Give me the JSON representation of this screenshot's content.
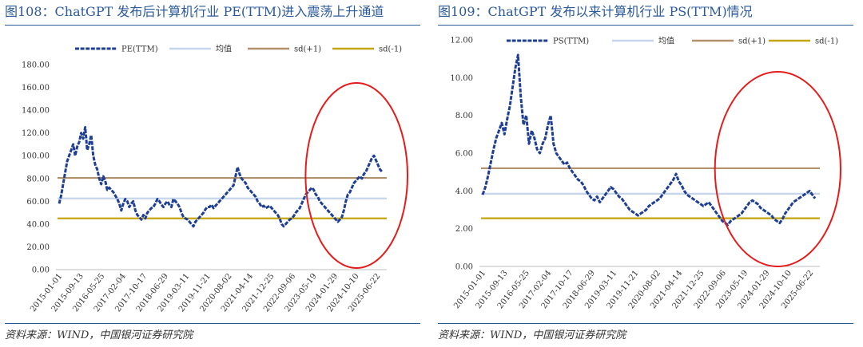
{
  "chart_data": [
    {
      "fig_title": "图108：ChatGPT 发布后计算机行业 PE(TTM)进入震荡上升通道",
      "source": "资料来源：WIND，中国银河证券研究院",
      "type": "line",
      "ylim": [
        0,
        180
      ],
      "yticks": [
        "0.00",
        "20.00",
        "40.00",
        "60.00",
        "80.00",
        "100.00",
        "120.00",
        "140.00",
        "160.00",
        "180.00"
      ],
      "xlabels": [
        "2015-01-01",
        "2015-09-13",
        "2016-05-25",
        "2017-02-04",
        "2017-10-17",
        "2018-06-29",
        "2019-03-11",
        "2019-11-21",
        "2020-08-02",
        "2021-04-14",
        "2021-12-25",
        "2022-09-06",
        "2023-05-19",
        "2024-01-29",
        "2024-10-10",
        "2025-06-22"
      ],
      "series": [
        {
          "name": "PE(TTM)",
          "color": "#1f3f95",
          "values": [
            58,
            65,
            75,
            85,
            95,
            100,
            105,
            110,
            100,
            108,
            112,
            120,
            115,
            125,
            105,
            110,
            118,
            100,
            92,
            88,
            80,
            75,
            82,
            78,
            70,
            72,
            70,
            68,
            65,
            62,
            58,
            52,
            58,
            62,
            60,
            55,
            58,
            60,
            52,
            48,
            46,
            44,
            48,
            45,
            50,
            52,
            54,
            55,
            58,
            62,
            60,
            57,
            55,
            58,
            60,
            57,
            55,
            62,
            60,
            58,
            55,
            50,
            46,
            45,
            44,
            42,
            40,
            38,
            42,
            44,
            46,
            48,
            50,
            53,
            55,
            55,
            57,
            54,
            56,
            58,
            60,
            62,
            64,
            66,
            68,
            70,
            72,
            74,
            82,
            90,
            84,
            80,
            78,
            76,
            72,
            70,
            68,
            66,
            64,
            60,
            58,
            55,
            56,
            54,
            55,
            56,
            54,
            52,
            50,
            48,
            45,
            40,
            38,
            40,
            42,
            44,
            45,
            47,
            50,
            52,
            54,
            58,
            62,
            66,
            68,
            70,
            72,
            70,
            66,
            64,
            60,
            58,
            56,
            54,
            52,
            50,
            48,
            46,
            44,
            42,
            44,
            46,
            52,
            60,
            66,
            68,
            72,
            76,
            78,
            80,
            82,
            80,
            84,
            86,
            90,
            94,
            98,
            100,
            96,
            92,
            88,
            86
          ],
          "style": "dashed"
        },
        {
          "name": "均值",
          "color": "#c5d5ec",
          "value": 62.5,
          "style": "flat"
        },
        {
          "name": "sd(+1)",
          "color": "#b2916a",
          "value": 80.5,
          "style": "flat"
        },
        {
          "name": "sd(-1)",
          "color": "#c4a40f",
          "value": 45.0,
          "style": "flat"
        }
      ],
      "annotation": {
        "shape": "ellipse",
        "color": "#e51b1b",
        "x_from": "2023-05-19",
        "x_to": "2025-06-22"
      }
    },
    {
      "fig_title": "图109：ChatGPT 发布以来计算机行业 PS(TTM)情况",
      "source": "资料来源：WIND，中国银河证券研究院",
      "type": "line",
      "ylim": [
        0,
        12
      ],
      "yticks": [
        "0.00",
        "2.00",
        "4.00",
        "6.00",
        "8.00",
        "10.00",
        "12.00"
      ],
      "xlabels": [
        "2015-01-01",
        "2015-09-13",
        "2016-05-25",
        "2017-02-04",
        "2017-10-17",
        "2018-06-29",
        "2019-03-11",
        "2019-11-21",
        "2020-08-02",
        "2021-04-14",
        "2021-12-25",
        "2022-09-06",
        "2023-05-19",
        "2024-01-29",
        "2024-10-10",
        "2025-06-22"
      ],
      "series": [
        {
          "name": "PS(TTM)",
          "color": "#1f3f95",
          "values": [
            3.8,
            4.2,
            4.8,
            5.5,
            6.2,
            6.8,
            7.2,
            7.6,
            7.0,
            7.8,
            8.5,
            9.5,
            10.5,
            11.2,
            9.0,
            7.5,
            8.0,
            6.5,
            7.2,
            6.8,
            6.2,
            6.0,
            6.5,
            6.8,
            7.5,
            8.0,
            6.5,
            6.0,
            5.8,
            5.6,
            5.4,
            5.5,
            5.2,
            5.0,
            4.8,
            4.6,
            4.5,
            4.3,
            4.0,
            3.8,
            3.6,
            3.5,
            3.7,
            3.4,
            3.6,
            3.8,
            4.0,
            4.2,
            4.1,
            3.9,
            3.7,
            3.6,
            3.4,
            3.2,
            3.0,
            2.9,
            2.8,
            2.7,
            2.8,
            2.9,
            3.0,
            3.2,
            3.3,
            3.4,
            3.5,
            3.6,
            3.8,
            4.0,
            4.2,
            4.4,
            4.6,
            4.9,
            4.5,
            4.3,
            4.0,
            3.8,
            3.7,
            3.6,
            3.5,
            3.4,
            3.3,
            3.2,
            3.3,
            3.4,
            3.2,
            3.0,
            2.8,
            2.6,
            2.4,
            2.3,
            2.2,
            2.4,
            2.5,
            2.6,
            2.7,
            2.8,
            3.0,
            3.2,
            3.4,
            3.5,
            3.4,
            3.3,
            3.1,
            3.0,
            2.9,
            2.8,
            2.7,
            2.5,
            2.4,
            2.3,
            2.5,
            2.8,
            3.0,
            3.2,
            3.4,
            3.5,
            3.6,
            3.7,
            3.8,
            3.9,
            4.0,
            3.8,
            3.6
          ],
          "style": "dashed"
        },
        {
          "name": "均值",
          "color": "#c5d5ec",
          "value": 3.85,
          "style": "flat"
        },
        {
          "name": "sd(+1)",
          "color": "#b2916a",
          "value": 5.2,
          "style": "flat"
        },
        {
          "name": "sd(-1)",
          "color": "#c4a40f",
          "value": 2.55,
          "style": "flat"
        }
      ],
      "annotation": {
        "shape": "ellipse",
        "color": "#e51b1b",
        "x_from": "2022-09-06",
        "x_to": "2025-06-22"
      }
    }
  ]
}
